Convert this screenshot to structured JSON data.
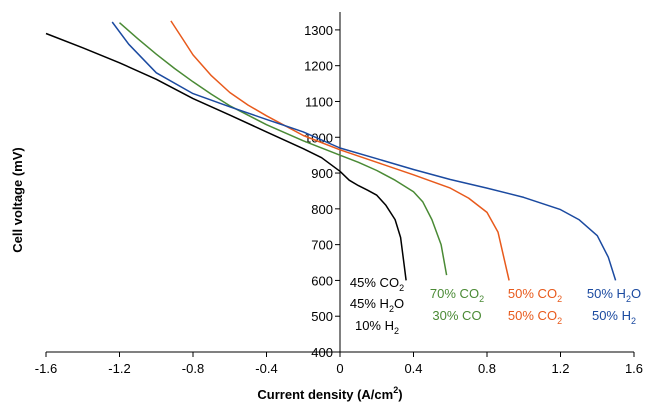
{
  "chart_data": {
    "type": "line",
    "xlabel": "Current density (A/cm",
    "xlabel_sup": "2",
    "xlabel_suffix": ")",
    "ylabel": "Cell voltage (mV)",
    "xlim": [
      -1.6,
      1.6
    ],
    "ylim": [
      400,
      1350
    ],
    "x_ticks": [
      -1.6,
      -1.2,
      -0.8,
      -0.4,
      0,
      0.4,
      0.8,
      1.2,
      1.6
    ],
    "x_tick_labels": [
      "-1.6",
      "-1.2",
      "-0.8",
      "-0.4",
      "0",
      "0.4",
      "0.8",
      "1.2",
      "1.6"
    ],
    "y_ticks": [
      400,
      500,
      600,
      700,
      800,
      900,
      1000,
      1100,
      1200,
      1300
    ],
    "y_tick_labels": [
      "400",
      "500",
      "600",
      "700",
      "800",
      "900",
      "1000",
      "1100",
      "1200",
      "1300"
    ],
    "grid": false,
    "series": [
      {
        "color": "#000000",
        "points": [
          [
            -1.6,
            1290
          ],
          [
            -1.4,
            1250
          ],
          [
            -1.2,
            1208
          ],
          [
            -1.0,
            1162
          ],
          [
            -0.8,
            1108
          ],
          [
            -0.6,
            1062
          ],
          [
            -0.4,
            1015
          ],
          [
            -0.2,
            968
          ],
          [
            -0.1,
            943
          ],
          [
            0,
            905
          ],
          [
            0.05,
            880
          ],
          [
            0.1,
            865
          ],
          [
            0.15,
            852
          ],
          [
            0.2,
            838
          ],
          [
            0.25,
            810
          ],
          [
            0.3,
            770
          ],
          [
            0.33,
            720
          ],
          [
            0.35,
            640
          ],
          [
            0.36,
            600
          ]
        ]
      },
      {
        "color": "#4a8a35",
        "points": [
          [
            -1.2,
            1320
          ],
          [
            -1.1,
            1275
          ],
          [
            -1.0,
            1232
          ],
          [
            -0.9,
            1192
          ],
          [
            -0.8,
            1155
          ],
          [
            -0.7,
            1120
          ],
          [
            -0.6,
            1088
          ],
          [
            -0.4,
            1035
          ],
          [
            -0.2,
            990
          ],
          [
            0,
            950
          ],
          [
            0.1,
            930
          ],
          [
            0.2,
            907
          ],
          [
            0.3,
            880
          ],
          [
            0.4,
            848
          ],
          [
            0.45,
            820
          ],
          [
            0.5,
            770
          ],
          [
            0.55,
            700
          ],
          [
            0.58,
            615
          ]
        ]
      },
      {
        "color": "#e85a1c",
        "points": [
          [
            -0.92,
            1325
          ],
          [
            -0.85,
            1270
          ],
          [
            -0.8,
            1230
          ],
          [
            -0.7,
            1172
          ],
          [
            -0.6,
            1125
          ],
          [
            -0.5,
            1090
          ],
          [
            -0.4,
            1060
          ],
          [
            -0.2,
            1005
          ],
          [
            0,
            965
          ],
          [
            0.2,
            930
          ],
          [
            0.4,
            895
          ],
          [
            0.6,
            858
          ],
          [
            0.7,
            830
          ],
          [
            0.8,
            790
          ],
          [
            0.86,
            735
          ],
          [
            0.92,
            600
          ]
        ]
      },
      {
        "color": "#1b4aa0",
        "points": [
          [
            -1.24,
            1322
          ],
          [
            -1.15,
            1260
          ],
          [
            -1.0,
            1180
          ],
          [
            -0.8,
            1122
          ],
          [
            -0.6,
            1085
          ],
          [
            -0.4,
            1050
          ],
          [
            -0.2,
            1015
          ],
          [
            0,
            970
          ],
          [
            0.2,
            940
          ],
          [
            0.4,
            910
          ],
          [
            0.6,
            882
          ],
          [
            0.8,
            858
          ],
          [
            1.0,
            832
          ],
          [
            1.2,
            798
          ],
          [
            1.3,
            770
          ],
          [
            1.4,
            725
          ],
          [
            1.46,
            665
          ],
          [
            1.5,
            600
          ]
        ]
      }
    ],
    "annotations": [
      {
        "color": "#000000",
        "lines": [
          {
            "text": "45% CO",
            "sub": "2"
          },
          {
            "text": "45% H",
            "sub": "2",
            "suffix": "O"
          },
          {
            "text": "10% H",
            "sub": "2"
          }
        ]
      },
      {
        "color": "#4a8a35",
        "lines": [
          {
            "text": "70% CO",
            "sub": "2"
          },
          {
            "text": "30% CO"
          }
        ]
      },
      {
        "color": "#e85a1c",
        "lines": [
          {
            "text": "50% CO",
            "sub": "2"
          },
          {
            "text": "50% CO",
            "sub": "2"
          }
        ]
      },
      {
        "color": "#1b4aa0",
        "lines": [
          {
            "text": "50% H",
            "sub": "2",
            "suffix": "O"
          },
          {
            "text": "50% H",
            "sub": "2"
          }
        ]
      }
    ]
  }
}
